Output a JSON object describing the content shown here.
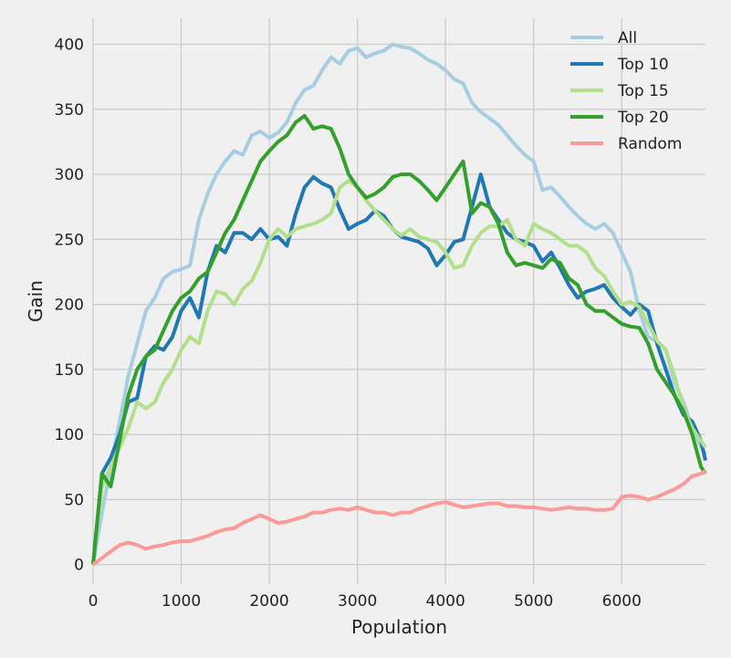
{
  "chart_data": {
    "type": "line",
    "title": "",
    "xlabel": "Population",
    "ylabel": "Gain",
    "xlim": [
      0,
      6950
    ],
    "ylim": [
      -15,
      420
    ],
    "xticks": [
      0,
      1000,
      2000,
      3000,
      4000,
      5000,
      6000
    ],
    "yticks": [
      0,
      50,
      100,
      150,
      200,
      250,
      300,
      350,
      400
    ],
    "grid": true,
    "legend_position": "top-right",
    "x": [
      0,
      100,
      200,
      300,
      400,
      500,
      600,
      700,
      800,
      900,
      1000,
      1100,
      1200,
      1300,
      1400,
      1500,
      1600,
      1700,
      1800,
      1900,
      2000,
      2100,
      2200,
      2300,
      2400,
      2500,
      2600,
      2700,
      2800,
      2900,
      3000,
      3100,
      3200,
      3300,
      3400,
      3500,
      3600,
      3700,
      3800,
      3900,
      4000,
      4100,
      4200,
      4300,
      4400,
      4500,
      4600,
      4700,
      4800,
      4900,
      5000,
      5100,
      5200,
      5300,
      5400,
      5500,
      5600,
      5700,
      5800,
      5900,
      6000,
      6100,
      6200,
      6300,
      6400,
      6500,
      6600,
      6700,
      6800,
      6900,
      6950
    ],
    "series": [
      {
        "name": "All",
        "color": "#a6cee3",
        "values": [
          0,
          40,
          75,
          110,
          145,
          170,
          195,
          205,
          220,
          225,
          227,
          230,
          265,
          285,
          300,
          310,
          318,
          315,
          330,
          333,
          328,
          332,
          340,
          355,
          365,
          368,
          380,
          390,
          385,
          395,
          397,
          390,
          393,
          395,
          400,
          398,
          397,
          393,
          388,
          385,
          380,
          373,
          370,
          355,
          348,
          343,
          338,
          330,
          322,
          315,
          310,
          288,
          290,
          283,
          275,
          268,
          262,
          258,
          262,
          255,
          240,
          225,
          195,
          175,
          172,
          165,
          140,
          125,
          105,
          90,
          85
        ]
      },
      {
        "name": "Top 10",
        "color": "#1f78b4",
        "values": [
          0,
          70,
          82,
          100,
          125,
          128,
          160,
          168,
          165,
          175,
          195,
          205,
          190,
          225,
          245,
          240,
          255,
          255,
          250,
          258,
          250,
          252,
          245,
          270,
          290,
          298,
          293,
          290,
          273,
          258,
          262,
          265,
          272,
          268,
          258,
          252,
          250,
          248,
          243,
          230,
          238,
          248,
          250,
          275,
          300,
          275,
          265,
          255,
          250,
          248,
          245,
          233,
          240,
          228,
          215,
          205,
          210,
          212,
          215,
          205,
          198,
          192,
          200,
          195,
          170,
          150,
          130,
          115,
          110,
          95,
          80
        ]
      },
      {
        "name": "Top 15",
        "color": "#b2df8a",
        "values": [
          0,
          60,
          75,
          90,
          105,
          125,
          120,
          125,
          140,
          150,
          165,
          175,
          170,
          195,
          210,
          208,
          200,
          212,
          218,
          232,
          250,
          258,
          252,
          258,
          260,
          262,
          265,
          270,
          290,
          295,
          290,
          280,
          272,
          265,
          258,
          253,
          258,
          252,
          250,
          248,
          240,
          228,
          230,
          245,
          255,
          260,
          260,
          265,
          250,
          245,
          262,
          258,
          255,
          250,
          245,
          245,
          240,
          228,
          222,
          210,
          200,
          202,
          198,
          185,
          172,
          165,
          145,
          120,
          105,
          95,
          90
        ]
      },
      {
        "name": "Top 20",
        "color": "#33a02c",
        "values": [
          0,
          70,
          60,
          95,
          130,
          150,
          160,
          165,
          180,
          195,
          205,
          210,
          220,
          225,
          240,
          255,
          265,
          280,
          295,
          310,
          318,
          325,
          330,
          340,
          345,
          335,
          337,
          335,
          320,
          300,
          290,
          282,
          285,
          290,
          298,
          300,
          300,
          295,
          288,
          280,
          290,
          300,
          310,
          270,
          278,
          275,
          262,
          240,
          230,
          232,
          230,
          228,
          235,
          232,
          220,
          215,
          200,
          195,
          195,
          190,
          185,
          183,
          182,
          170,
          150,
          140,
          130,
          118,
          100,
          75,
          70
        ]
      },
      {
        "name": "Random",
        "color": "#fb9a99",
        "values": [
          0,
          5,
          10,
          15,
          17,
          15,
          12,
          14,
          15,
          17,
          18,
          18,
          20,
          22,
          25,
          27,
          28,
          32,
          35,
          38,
          35,
          32,
          33,
          35,
          37,
          40,
          40,
          42,
          43,
          42,
          44,
          42,
          40,
          40,
          38,
          40,
          40,
          43,
          45,
          47,
          48,
          46,
          44,
          45,
          46,
          47,
          47,
          45,
          45,
          44,
          44,
          43,
          42,
          43,
          44,
          43,
          43,
          42,
          42,
          43,
          52,
          53,
          52,
          50,
          52,
          55,
          58,
          62,
          68,
          70,
          72
        ]
      }
    ]
  }
}
